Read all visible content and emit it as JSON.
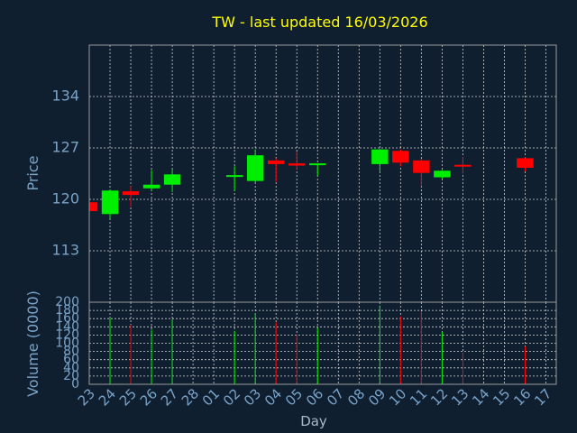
{
  "chart_data": {
    "type": "candlestick",
    "title": "TW - last updated 16/03/2026",
    "xlabel": "Day",
    "ylabel": "Price",
    "volume_label": "Volume (0000)",
    "categories": [
      "23",
      "24",
      "25",
      "26",
      "27",
      "28",
      "01",
      "02",
      "03",
      "04",
      "05",
      "06",
      "07",
      "08",
      "09",
      "10",
      "11",
      "12",
      "13",
      "14",
      "15",
      "16",
      "17"
    ],
    "price_ticks": [
      113,
      120,
      127,
      134
    ],
    "price_range": [
      106,
      141
    ],
    "volume_ticks": [
      0,
      20,
      40,
      60,
      80,
      100,
      120,
      140,
      160,
      180,
      200
    ],
    "volume_range": [
      0,
      200
    ],
    "grid": true,
    "colors": {
      "up": "#00ee00",
      "down": "#ff0000",
      "background": "#0f1f30",
      "grid": "#d0d0d0",
      "title": "#ffff00",
      "axis_text": "#7aa3c8"
    },
    "candles": [
      {
        "day": "23",
        "open": 119.6,
        "high": 119.8,
        "low": 118.0,
        "close": 118.4,
        "volume": 0
      },
      {
        "day": "24",
        "open": 118.0,
        "high": 121.3,
        "low": 117.4,
        "close": 121.2,
        "volume": 162
      },
      {
        "day": "25",
        "open": 121.1,
        "high": 121.8,
        "low": 119.0,
        "close": 120.6,
        "volume": 145
      },
      {
        "day": "26",
        "open": 121.5,
        "high": 124.0,
        "low": 121.2,
        "close": 122.0,
        "volume": 133
      },
      {
        "day": "27",
        "open": 122.0,
        "high": 124.1,
        "low": 121.0,
        "close": 123.4,
        "volume": 158
      },
      {
        "day": "02",
        "open": 123.1,
        "high": 124.5,
        "low": 121.2,
        "close": 123.3,
        "volume": 130
      },
      {
        "day": "03",
        "open": 122.5,
        "high": 126.8,
        "low": 122.3,
        "close": 126.0,
        "volume": 173
      },
      {
        "day": "04",
        "open": 125.3,
        "high": 125.6,
        "low": 122.4,
        "close": 124.8,
        "volume": 152
      },
      {
        "day": "05",
        "open": 124.9,
        "high": 126.5,
        "low": 124.0,
        "close": 124.6,
        "volume": 122
      },
      {
        "day": "06",
        "open": 124.7,
        "high": 124.9,
        "low": 123.2,
        "close": 124.9,
        "volume": 137
      },
      {
        "day": "09",
        "open": 124.8,
        "high": 126.9,
        "low": 123.8,
        "close": 126.8,
        "volume": 192
      },
      {
        "day": "10",
        "open": 126.6,
        "high": 126.8,
        "low": 124.5,
        "close": 125.0,
        "volume": 165
      },
      {
        "day": "11",
        "open": 125.3,
        "high": 125.5,
        "low": 121.8,
        "close": 123.6,
        "volume": 178
      },
      {
        "day": "12",
        "open": 123.0,
        "high": 124.0,
        "low": 122.8,
        "close": 123.9,
        "volume": 128
      },
      {
        "day": "13",
        "open": 124.7,
        "high": 125.8,
        "low": 123.5,
        "close": 124.6,
        "volume": 78
      },
      {
        "day": "16",
        "open": 125.6,
        "high": 125.7,
        "low": 123.8,
        "close": 124.3,
        "volume": 92
      }
    ]
  }
}
